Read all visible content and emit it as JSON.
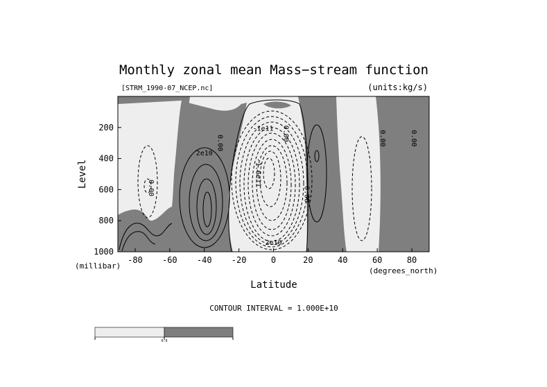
{
  "chart_data": {
    "type": "contour",
    "title": "Monthly zonal mean Mass−stream function",
    "file_label": "[STRM_1990-07_NCEP.nc]",
    "units_label": "(units:kg/s)",
    "xlabel": "Latitude",
    "x_units": "(degrees_north)",
    "ylabel": "Level",
    "y_units": "(millibar)",
    "x_ticks": [
      "-80",
      "-60",
      "-40",
      "-20",
      "0",
      "20",
      "40",
      "60",
      "80"
    ],
    "x_tick_values": [
      -80,
      -60,
      -40,
      -20,
      0,
      20,
      40,
      60,
      80
    ],
    "y_ticks": [
      "200",
      "400",
      "600",
      "800",
      "1000"
    ],
    "y_tick_values": [
      200,
      400,
      600,
      800,
      1000
    ],
    "xlim": [
      -90,
      90
    ],
    "ylim": [
      1000,
      0
    ],
    "contour_interval_text": "CONTOUR INTERVAL = 1.000E+10",
    "contour_labels": [
      {
        "text": "2e10",
        "lat": -40,
        "lev": 380
      },
      {
        "text": "0.00",
        "lat": -72,
        "lev": 590
      },
      {
        "text": "0.00",
        "lat": -32,
        "lev": 300
      },
      {
        "text": "-1.6e11",
        "lat": -10,
        "lev": 490
      },
      {
        "text": "-1e11",
        "lat": -6,
        "lev": 220
      },
      {
        "text": "0.00",
        "lat": 6,
        "lev": 240
      },
      {
        "text": "2e10",
        "lat": 0,
        "lev": 955
      },
      {
        "text": "0.00",
        "lat": 18,
        "lev": 630
      },
      {
        "text": "0.00",
        "lat": 62,
        "lev": 270
      },
      {
        "text": "0.00",
        "lat": 80,
        "lev": 270
      }
    ],
    "shading": {
      "negative_color": "#eeeeee",
      "positive_color": "#7f7f7f",
      "colorbar_label": "0.0"
    }
  }
}
